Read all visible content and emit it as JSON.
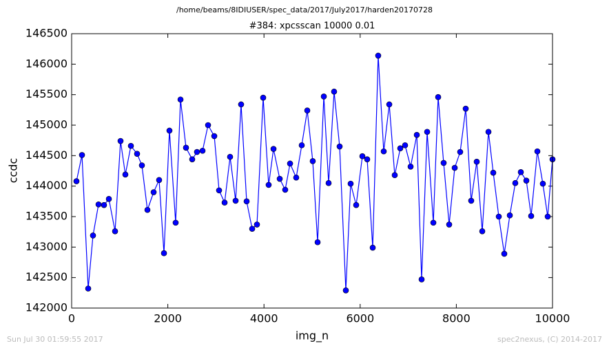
{
  "chart_data": {
    "type": "line",
    "suptitle": "/home/beams/8IDIUSER/spec_data/2017/July2017/harden20170728",
    "title": "#384: xpcsscan 10000 0.01",
    "xlabel": "img_n",
    "ylabel": "ccdc",
    "footer_left": "Sun Jul 30 01:59:55 2017",
    "footer_right": "spec2nexus, (C) 2014-2017",
    "color": "#0000ff",
    "xlim": [
      0,
      10000
    ],
    "xticks": [
      0,
      2000,
      4000,
      6000,
      8000,
      10000
    ],
    "ylim": [
      142000,
      146500
    ],
    "yticks": [
      142000,
      142500,
      143000,
      143500,
      144000,
      144500,
      145000,
      145500,
      146000,
      146500
    ],
    "x": [
      100,
      215,
      344,
      444,
      559,
      673,
      774,
      903,
      1017,
      1117,
      1232,
      1361,
      1461,
      1576,
      1705,
      1819,
      1920,
      2034,
      2163,
      2264,
      2378,
      2507,
      2607,
      2722,
      2837,
      2966,
      3066,
      3181,
      3295,
      3410,
      3524,
      3639,
      3754,
      3854,
      3983,
      4097,
      4198,
      4327,
      4441,
      4542,
      4670,
      4785,
      4900,
      5014,
      5115,
      5244,
      5344,
      5458,
      5573,
      5702,
      5802,
      5917,
      6046,
      6146,
      6261,
      6375,
      6490,
      6605,
      6719,
      6834,
      6934,
      7049,
      7178,
      7278,
      7393,
      7522,
      7622,
      7736,
      7851,
      7966,
      8080,
      8195,
      8309,
      8424,
      8539,
      8668,
      8768,
      8883,
      8997,
      9112,
      9226,
      9341,
      9456,
      9556,
      9685,
      9799,
      9900,
      10000
    ],
    "values": [
      144080,
      144510,
      142320,
      143190,
      143700,
      143690,
      143790,
      143260,
      144740,
      144190,
      144660,
      144530,
      144340,
      143610,
      143900,
      144100,
      142900,
      144910,
      143400,
      145420,
      144630,
      144440,
      144560,
      144580,
      145000,
      144820,
      143930,
      143730,
      144480,
      143760,
      145340,
      143750,
      143300,
      143370,
      145450,
      144020,
      144610,
      144120,
      143940,
      144370,
      144140,
      144670,
      145240,
      144410,
      143080,
      145470,
      144050,
      145550,
      144650,
      142290,
      144040,
      143690,
      144490,
      144440,
      142990,
      146140,
      144570,
      145340,
      144180,
      144620,
      144670,
      144320,
      144840,
      142470,
      144890,
      143400,
      145460,
      144380,
      143370,
      144300,
      144560,
      145270,
      143760,
      144400,
      143260,
      144890,
      144220,
      143500,
      142890,
      143520,
      144050,
      144230,
      144090,
      143510,
      144570,
      144040,
      143500,
      144440
    ]
  }
}
